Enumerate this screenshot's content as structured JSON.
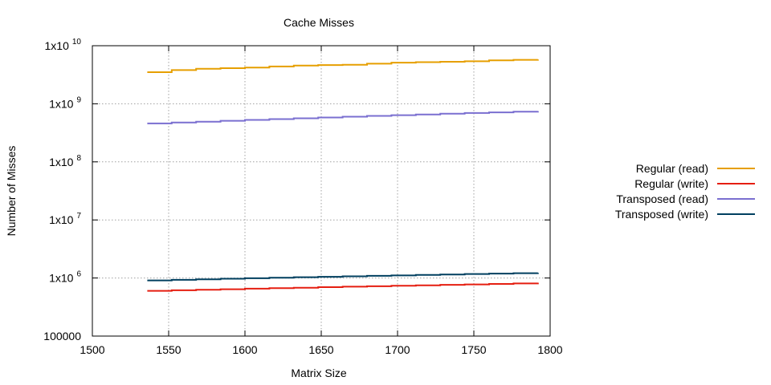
{
  "chart_data": {
    "type": "line",
    "title": "Cache Misses",
    "xlabel": "Matrix Size",
    "ylabel": "Number of Misses",
    "xlim": [
      1500,
      1800
    ],
    "ylim": [
      100000,
      10000000000
    ],
    "yscale": "log",
    "grid": true,
    "legend_position": "right",
    "xticks": [
      1500,
      1550,
      1600,
      1650,
      1700,
      1750,
      1800
    ],
    "yticks": [
      {
        "value": 100000,
        "base": "100000",
        "exp": ""
      },
      {
        "value": 1000000,
        "base": "1x10",
        "exp": "6"
      },
      {
        "value": 10000000,
        "base": "1x10",
        "exp": "7"
      },
      {
        "value": 100000000,
        "base": "1x10",
        "exp": "8"
      },
      {
        "value": 1000000000,
        "base": "1x10",
        "exp": "9"
      },
      {
        "value": 10000000000,
        "base": "1x10",
        "exp": "10"
      }
    ],
    "x": [
      1536,
      1552,
      1568,
      1584,
      1600,
      1616,
      1632,
      1648,
      1664,
      1680,
      1696,
      1712,
      1728,
      1744,
      1760,
      1776,
      1792
    ],
    "series": [
      {
        "name": "Regular (read)",
        "color": "#e69f00",
        "values": [
          3500000000,
          3800000000,
          4000000000,
          4100000000,
          4200000000,
          4400000000,
          4550000000,
          4650000000,
          4700000000,
          4900000000,
          5100000000,
          5200000000,
          5300000000,
          5400000000,
          5600000000,
          5700000000,
          5800000000
        ]
      },
      {
        "name": "Regular (write)",
        "color": "#e51e10",
        "values": [
          600000,
          615000,
          628000,
          640000,
          655000,
          668000,
          680000,
          695000,
          710000,
          722000,
          735000,
          748000,
          762000,
          775000,
          790000,
          805000,
          830000
        ]
      },
      {
        "name": "Transposed (read)",
        "color": "#7a6fd0",
        "values": [
          460000000,
          475000000,
          492000000,
          510000000,
          528000000,
          545000000,
          562000000,
          580000000,
          600000000,
          618000000,
          637000000,
          655000000,
          675000000,
          695000000,
          712000000,
          730000000,
          750000000
        ]
      },
      {
        "name": "Transposed (write)",
        "color": "#003f5f",
        "values": [
          910000,
          930000,
          950000,
          970000,
          990000,
          1010000,
          1030000,
          1050000,
          1070000,
          1090000,
          1110000,
          1130000,
          1150000,
          1170000,
          1190000,
          1210000,
          1230000
        ]
      }
    ]
  }
}
